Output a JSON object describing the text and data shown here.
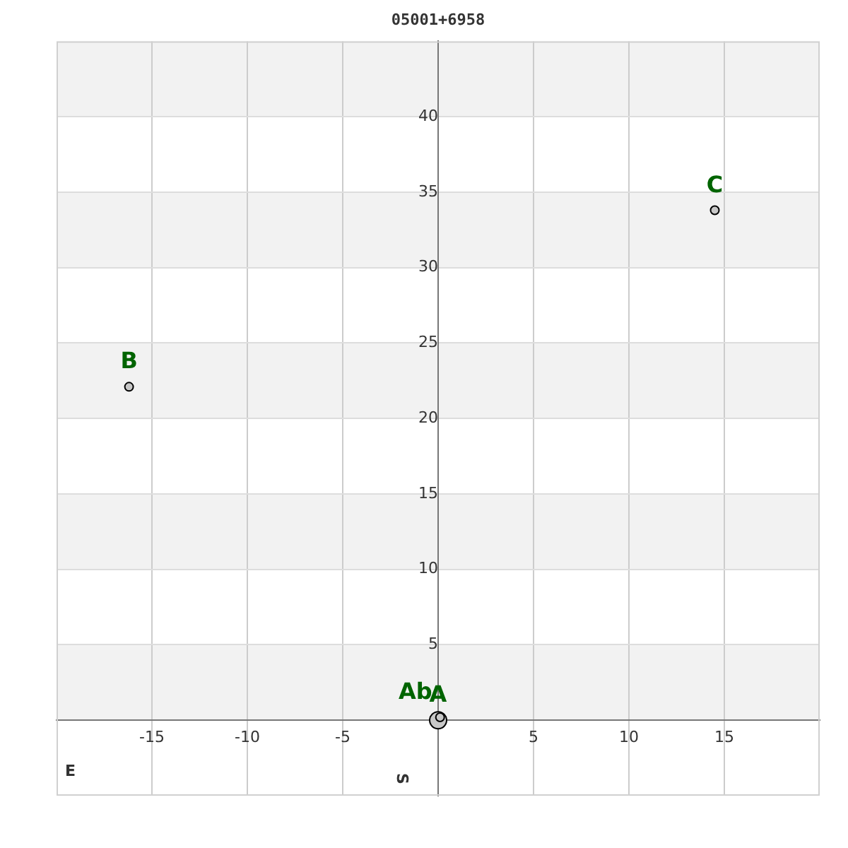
{
  "chart_data": {
    "type": "scatter",
    "title": "05001+6958",
    "series": [
      {
        "name": "A",
        "color": "#c8c8c8",
        "x": [
          0
        ],
        "values": [
          0
        ]
      },
      {
        "name": "Ab",
        "color": "#c8c8c8",
        "x": [
          0.1
        ],
        "values": [
          0.2
        ]
      },
      {
        "name": "B",
        "color": "#c8c8c8",
        "x": [
          -16.2
        ],
        "values": [
          22.1
        ]
      },
      {
        "name": "C",
        "color": "#c8c8c8",
        "x": [
          14.5
        ],
        "values": [
          33.8
        ]
      }
    ],
    "xlim": [
      -20,
      20
    ],
    "xticks": [
      -15,
      -10,
      -5,
      5,
      10,
      15
    ],
    "ylim": [
      -5,
      45
    ],
    "yticks": [
      5,
      10,
      15,
      20,
      25,
      30,
      35,
      40
    ],
    "annotations": [
      "E",
      "S"
    ],
    "bands": [
      {
        "axis": "y",
        "from": 0,
        "to": 5,
        "color": "#f2f2f2"
      },
      {
        "axis": "y",
        "from": 10,
        "to": 15,
        "color": "#f2f2f2"
      },
      {
        "axis": "y",
        "from": 20,
        "to": 25,
        "color": "#f2f2f2"
      },
      {
        "axis": "y",
        "from": 30,
        "to": 35,
        "color": "#f2f2f2"
      },
      {
        "axis": "y",
        "from": 40,
        "to": 45,
        "color": "#f2f2f2"
      }
    ],
    "grid": true,
    "legend": false,
    "marker": "circle"
  }
}
